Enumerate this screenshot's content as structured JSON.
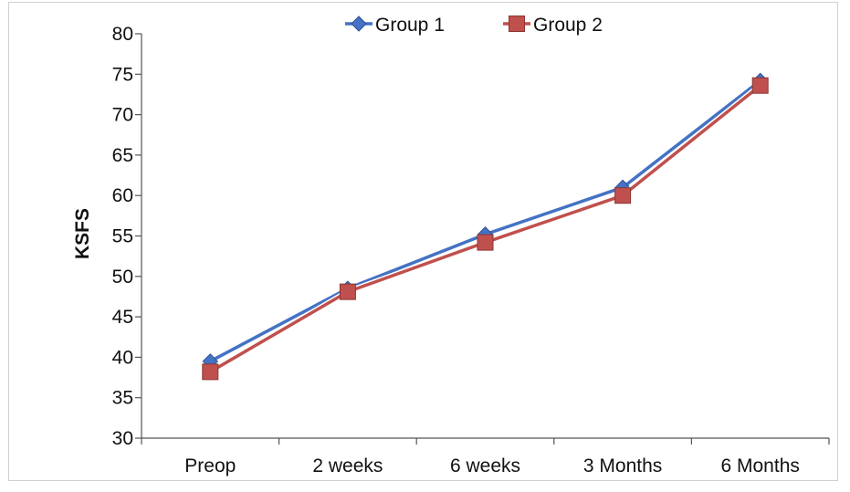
{
  "chart_data": {
    "type": "line",
    "title": "",
    "xlabel": "",
    "ylabel": "KSFS",
    "ylim": [
      30,
      80
    ],
    "yticks": [
      30,
      35,
      40,
      45,
      50,
      55,
      60,
      65,
      70,
      75,
      80
    ],
    "categories": [
      "Preop",
      "2 weeks",
      "6 weeks",
      "3 Months",
      "6 Months"
    ],
    "grid": false,
    "legend_position": "top",
    "series": [
      {
        "name": "Group 1",
        "values": [
          39.5,
          48.5,
          55.2,
          61.0,
          74.2
        ],
        "color": "#4472C4",
        "marker": "diamond"
      },
      {
        "name": "Group 2",
        "values": [
          38.2,
          48.1,
          54.2,
          60.0,
          73.6
        ],
        "color": "#C0504D",
        "marker": "square"
      }
    ]
  }
}
